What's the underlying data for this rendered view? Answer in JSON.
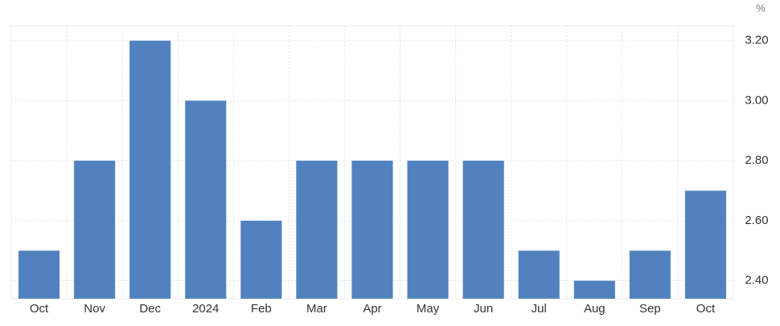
{
  "chart_data": {
    "type": "bar",
    "unit": "%",
    "categories": [
      "Oct",
      "Nov",
      "Dec",
      "2024",
      "Feb",
      "Mar",
      "Apr",
      "May",
      "Jun",
      "Jul",
      "Aug",
      "Sep",
      "Oct"
    ],
    "values": [
      2.5,
      2.8,
      3.2,
      3.0,
      2.6,
      2.8,
      2.8,
      2.8,
      2.8,
      2.5,
      2.4,
      2.5,
      2.7
    ],
    "color": "#5182bf",
    "ylim": [
      2.34,
      3.25
    ],
    "yticks": [
      {
        "value": 2.4,
        "label": "2.40"
      },
      {
        "value": 2.6,
        "label": "2.60"
      },
      {
        "value": 2.8,
        "label": "2.80"
      },
      {
        "value": 3.0,
        "label": "3.00"
      },
      {
        "value": 3.2,
        "label": "3.20"
      }
    ],
    "grid": true
  }
}
